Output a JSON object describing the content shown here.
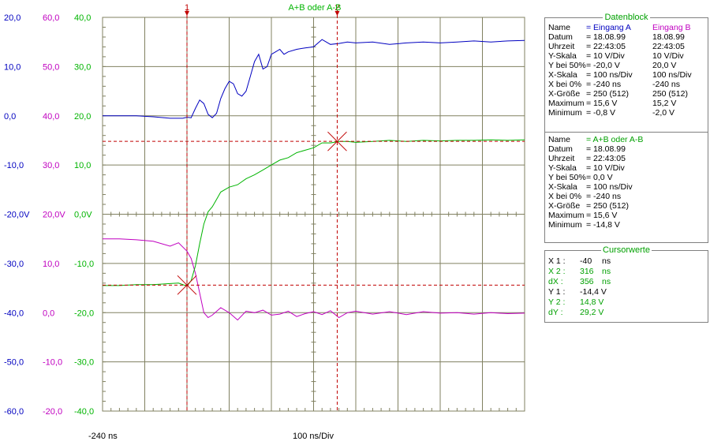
{
  "colors": {
    "channel_a": "#0000c0",
    "channel_b": "#c000c0",
    "sum": "#00b400",
    "cursor": "#c00000",
    "grid": "#808060"
  },
  "chart_data": {
    "type": "line",
    "x_start_label": "-240 ns",
    "x_div_label": "100 ns/Div",
    "xlim": [
      -240,
      760
    ],
    "scales": {
      "a": {
        "ticks": [
          "20,0",
          "10,0",
          "0,0",
          "-10,0",
          "-20,0V",
          "-30,0",
          "-40,0",
          "-50,0",
          "-60,0"
        ],
        "ylim": [
          -60,
          20
        ],
        "color": "#0000c0"
      },
      "b": {
        "ticks": [
          "60,0",
          "50,0",
          "40,0",
          "30,0",
          "20,0V",
          "10,0",
          "0,0",
          "-10,0",
          "-20,0"
        ],
        "ylim": [
          -20,
          60
        ],
        "color": "#c000c0"
      },
      "sum": {
        "ticks": [
          "40,0",
          "30,0",
          "20,0",
          "10,0",
          "0,0V",
          "-10,0",
          "-20,0",
          "-30,0",
          "-40,0"
        ],
        "ylim": [
          -40,
          40
        ],
        "color": "#00b400"
      }
    },
    "series": [
      {
        "name": "Eingang A",
        "scale": "a",
        "color": "#0000c0",
        "x": [
          -240,
          -160,
          -120,
          -80,
          -50,
          -40,
          -30,
          -20,
          -10,
          0,
          10,
          20,
          30,
          40,
          50,
          60,
          70,
          80,
          90,
          100,
          110,
          120,
          130,
          140,
          150,
          160,
          170,
          180,
          190,
          200,
          220,
          240,
          260,
          280,
          300,
          320,
          340,
          360,
          400,
          440,
          480,
          520,
          560,
          600,
          640,
          680,
          720,
          760
        ],
        "y": [
          0,
          0,
          -0.2,
          -0.5,
          -0.5,
          -0.3,
          -0.4,
          1.5,
          3.2,
          2.5,
          0.3,
          -0.4,
          0.5,
          3.5,
          5.5,
          7,
          6.5,
          4.5,
          4,
          5,
          8,
          11,
          12.5,
          9.5,
          10,
          12.5,
          13,
          13.5,
          12.5,
          13,
          13.5,
          13.8,
          14,
          15.5,
          14.5,
          14.7,
          15,
          14.8,
          15,
          14.5,
          14.8,
          15,
          14.8,
          15,
          15.2,
          15,
          15.2,
          15.3
        ]
      },
      {
        "name": "Eingang B",
        "scale": "b",
        "color": "#c000c0",
        "x": [
          -240,
          -200,
          -160,
          -120,
          -80,
          -60,
          -40,
          -30,
          -20,
          -10,
          0,
          10,
          20,
          40,
          60,
          80,
          100,
          120,
          140,
          160,
          180,
          200,
          220,
          240,
          260,
          280,
          300,
          320,
          340,
          360,
          400,
          440,
          480,
          520,
          560,
          600,
          640,
          680,
          720,
          760
        ],
        "y": [
          15,
          15,
          14.8,
          14.5,
          13.5,
          14.2,
          12.5,
          11,
          8,
          4,
          0,
          -1,
          -0.5,
          1,
          0,
          -1.5,
          0.3,
          0,
          0.5,
          -0.5,
          -0.3,
          0.3,
          -0.8,
          -0.2,
          0.2,
          -0.4,
          0.4,
          -1,
          0,
          0.3,
          -0.3,
          0.2,
          -0.4,
          0.2,
          -0.1,
          0,
          -0.3,
          0,
          -0.2,
          -0.1
        ]
      },
      {
        "name": "A+B oder A-B",
        "scale": "sum",
        "color": "#00b400",
        "x": [
          -240,
          -200,
          -160,
          -120,
          -80,
          -60,
          -40,
          -30,
          -20,
          -10,
          0,
          10,
          20,
          30,
          40,
          60,
          80,
          100,
          120,
          140,
          160,
          180,
          200,
          220,
          240,
          260,
          280,
          300,
          320,
          340,
          360,
          400,
          440,
          480,
          520,
          560,
          600,
          640,
          680,
          720,
          760
        ],
        "y": [
          -14.5,
          -14.5,
          -14.3,
          -14.3,
          -14.1,
          -14,
          -14.6,
          -13.5,
          -10.5,
          -6,
          -2,
          0.5,
          1.5,
          3,
          4.5,
          5.5,
          6,
          7.2,
          8,
          9,
          10,
          11,
          11.5,
          12.5,
          13,
          13.5,
          14.5,
          14.5,
          14.8,
          14.8,
          14.6,
          14.8,
          15,
          14.8,
          15,
          14.9,
          15,
          15,
          15.1,
          15,
          15.1
        ]
      }
    ],
    "cursors": [
      {
        "label": "1",
        "x": -40,
        "y": -14.4
      },
      {
        "label": "2",
        "x": 316,
        "y": 14.8
      }
    ],
    "cursor2_caption": "A+B oder A-B"
  },
  "datenblock": {
    "title": "Datenblock",
    "col_a_header": "= Eingang A",
    "col_b_header": "Eingang B",
    "rows_top": [
      {
        "label": "Name",
        "a": "",
        "b": ""
      },
      {
        "label": "Datum",
        "a": "= 18.08.99",
        "b": "18.08.99"
      },
      {
        "label": "Uhrzeit",
        "a": "= 22:43:05",
        "b": "22:43:05"
      },
      {
        "label": "Y-Skala",
        "a": "=    10   V/Div",
        "b": "10   V/Div"
      },
      {
        "label": "Y bei 50%",
        "a": "=  -20,0 V",
        "b": "20,0 V"
      },
      {
        "label": "X-Skala",
        "a": "=  100   ns/Div",
        "b": "100   ns/Div"
      },
      {
        "label": "X bei 0%",
        "a": "=  -240    ns",
        "b": "-240     ns"
      },
      {
        "label": "X-Größe",
        "a": "= 250 (512)",
        "b": "250 (512)"
      },
      {
        "label": "Maximum",
        "a": "=    15,6 V",
        "b": "15,2 V"
      },
      {
        "label": "Minimum",
        "a": "=    -0,8 V",
        "b": "-2,0 V"
      }
    ],
    "sum_header": "= A+B oder A-B",
    "rows_sum": [
      {
        "label": "Name",
        "v": ""
      },
      {
        "label": "Datum",
        "v": "= 18.08.99"
      },
      {
        "label": "Uhrzeit",
        "v": "= 22:43:05"
      },
      {
        "label": "Y-Skala",
        "v": "=    10   V/Div"
      },
      {
        "label": "Y bei 50%",
        "v": "=      0,0 V"
      },
      {
        "label": "X-Skala",
        "v": "=  100    ns/Div"
      },
      {
        "label": "X bei 0%",
        "v": "=  -240    ns"
      },
      {
        "label": "X-Größe",
        "v": "= 250 (512)"
      },
      {
        "label": "Maximum",
        "v": "=    15,6 V"
      },
      {
        "label": "Minimum",
        "v": "=   -14,8 V"
      }
    ]
  },
  "cursorwerte": {
    "title": "Cursorwerte",
    "rows": [
      {
        "label": "X 1 :",
        "value": "-40",
        "unit": "ns",
        "color": "#000000"
      },
      {
        "label": "X 2 :",
        "value": "316",
        "unit": "ns",
        "color": "#00a000"
      },
      {
        "label": "dX :",
        "value": "356",
        "unit": "ns",
        "color": "#00a000"
      },
      {
        "label": "Y 1 :",
        "value": "-14,4 V",
        "unit": "",
        "color": "#000000"
      },
      {
        "label": "Y 2 :",
        "value": "14,8 V",
        "unit": "",
        "color": "#00a000"
      },
      {
        "label": "dY :",
        "value": "29,2 V",
        "unit": "",
        "color": "#00a000"
      }
    ]
  }
}
